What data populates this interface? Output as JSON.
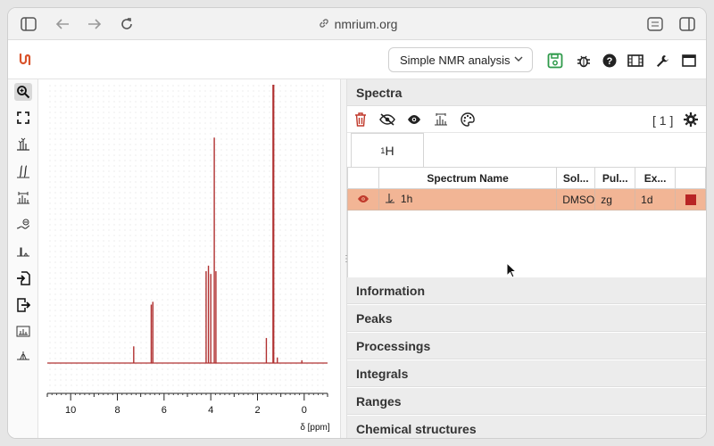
{
  "browser": {
    "url": "nmrium.org",
    "icons": [
      "sidebar-icon",
      "back-arrow-icon",
      "forward-arrow-icon",
      "reload-icon",
      "link-icon",
      "tune-icon",
      "split-view-icon"
    ]
  },
  "toolbar": {
    "analysis_select": "Simple NMR analysis",
    "icons": [
      "save-icon",
      "bug-icon",
      "help-icon",
      "film-icon",
      "wrench-icon",
      "window-icon"
    ],
    "save_color": "#2e9a4a"
  },
  "left_tools": [
    "zoom-icon",
    "fullscreen-icon",
    "peak-picking-icon",
    "integral-icon",
    "auto-ranges-icon",
    "baseline-icon",
    "phase-icon",
    "import-icon",
    "export-icon",
    "spectrum-edit-icon",
    "apodization-icon"
  ],
  "plot": {
    "axis_label": "δ [ppm]",
    "line_color": "#b03030",
    "chart_data": {
      "type": "line",
      "xlabel": "δ [ppm]",
      "xlim": [
        11,
        -1
      ],
      "x_ticks": [
        10,
        8,
        6,
        4,
        2,
        0
      ],
      "peaks": [
        {
          "ppm": 7.3,
          "intensity": 0.06
        },
        {
          "ppm": 6.55,
          "intensity": 0.21
        },
        {
          "ppm": 6.48,
          "intensity": 0.22
        },
        {
          "ppm": 4.2,
          "intensity": 0.33
        },
        {
          "ppm": 4.1,
          "intensity": 0.35
        },
        {
          "ppm": 4.0,
          "intensity": 0.32
        },
        {
          "ppm": 3.85,
          "intensity": 0.81
        },
        {
          "ppm": 3.78,
          "intensity": 0.33
        },
        {
          "ppm": 1.62,
          "intensity": 0.09
        },
        {
          "ppm": 1.32,
          "intensity": 1.0
        },
        {
          "ppm": 1.15,
          "intensity": 0.02
        },
        {
          "ppm": 0.1,
          "intensity": 0.01
        }
      ]
    }
  },
  "panel": {
    "spectra_header": "Spectra",
    "counter": "[ 1 ]",
    "tab_label_sup": "1",
    "tab_label_main": "H",
    "columns": [
      "Spectrum Name",
      "Sol...",
      "Pul...",
      "Ex..."
    ],
    "row": {
      "name": "1h",
      "solvent": "DMSO",
      "pulse": "zg",
      "experiment": "1d",
      "color": "#b82525"
    },
    "sections": [
      "Information",
      "Peaks",
      "Processings",
      "Integrals",
      "Ranges",
      "Chemical structures"
    ]
  }
}
